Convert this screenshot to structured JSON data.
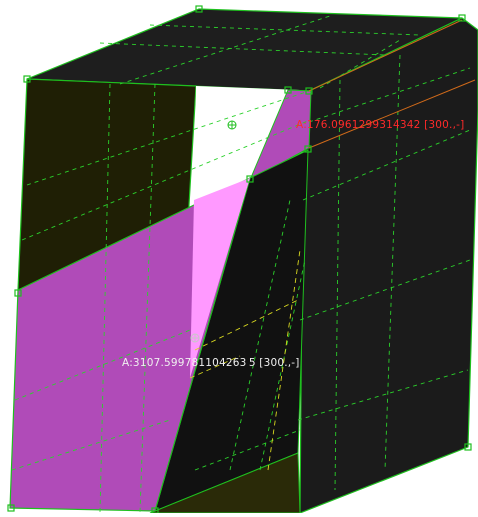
{
  "annotations": [
    {
      "text": "A:176.0961299314342 [300.,-]",
      "color": "#ff2a2a"
    },
    {
      "text": "A:3107.599781104263 5 [300.,-]",
      "color": "#f0f0f0"
    }
  ],
  "colors": {
    "background": "#ffffff",
    "face_dark": "#1e1e1e",
    "face_darker": "#141414",
    "face_olive": "#1f1f05",
    "face_olive_bottom": "#2a2a08",
    "selected_face": "#b04bb8",
    "selected_face_light": "#ff99ff",
    "edge": "#1fbf1f",
    "mesh_line": "#2bd12b",
    "hidden_line": "#d8d820",
    "orange_edge": "#d06a1a"
  },
  "icons": [
    "crosshair-icon",
    "vertex-handle-icon"
  ]
}
